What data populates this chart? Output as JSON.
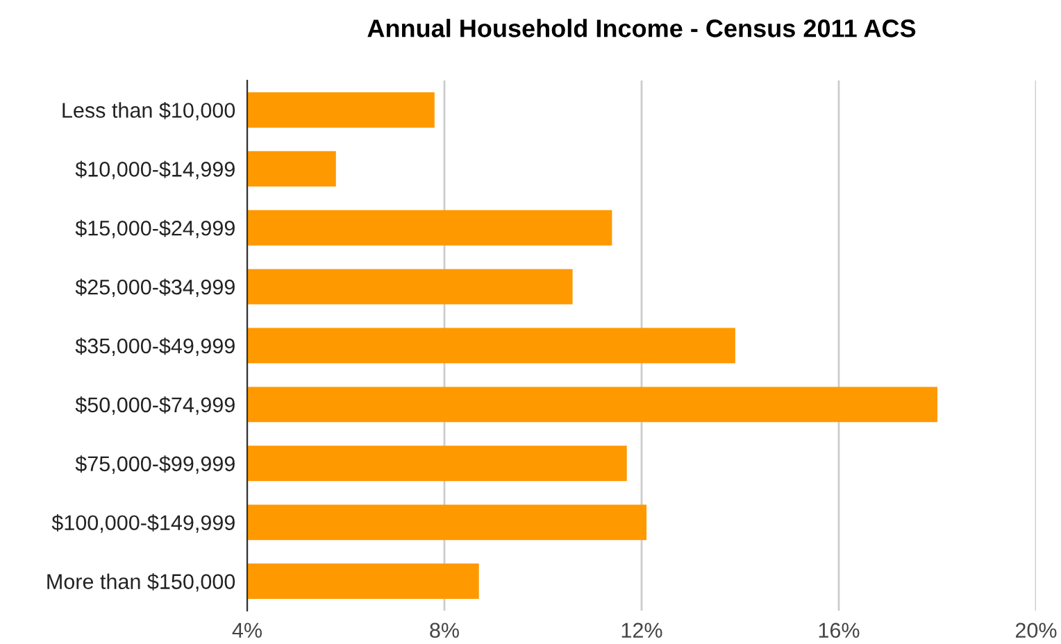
{
  "chart_data": {
    "type": "bar",
    "orientation": "horizontal",
    "title": "Annual Household Income - Census 2011 ACS",
    "categories": [
      "Less than $10,000",
      "$10,000-$14,999",
      "$15,000-$24,999",
      "$25,000-$34,999",
      "$35,000-$49,999",
      "$50,000-$74,999",
      "$75,000-$99,999",
      "$100,000-$149,999",
      "More than $150,000"
    ],
    "values": [
      7.8,
      5.8,
      11.4,
      10.6,
      13.9,
      18.0,
      11.7,
      12.1,
      8.7
    ],
    "color": "#ff9900",
    "xlim": [
      4,
      20
    ],
    "xticks": [
      {
        "value": 4,
        "label": "4%"
      },
      {
        "value": 8,
        "label": "8%"
      },
      {
        "value": 12,
        "label": "12%"
      },
      {
        "value": 16,
        "label": "16%"
      },
      {
        "value": 20,
        "label": "20%"
      }
    ],
    "grid": "x"
  }
}
